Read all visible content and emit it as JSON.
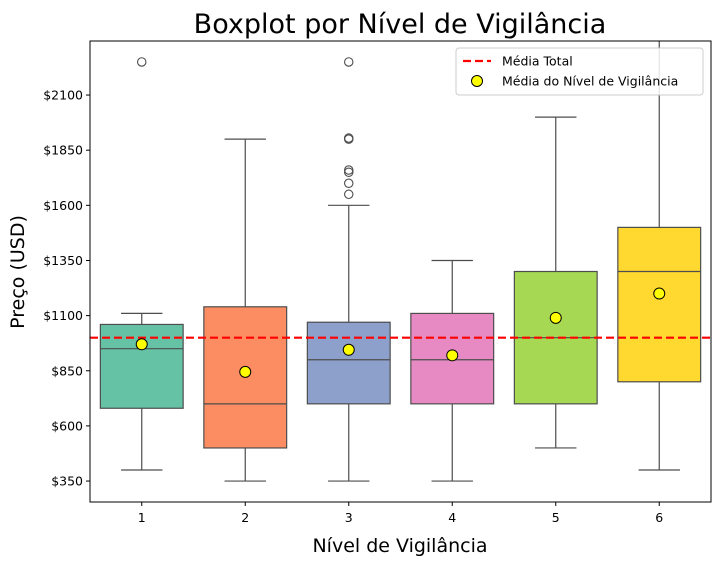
{
  "chart_data": {
    "type": "boxplot",
    "title": "Boxplot por Nível de Vigilância",
    "xlabel": "Nível de Vigilância",
    "ylabel": "Preço (USD)",
    "categories": [
      "1",
      "2",
      "3",
      "4",
      "5",
      "6"
    ],
    "ylim": [
      255,
      2345
    ],
    "yticks": [
      350,
      600,
      850,
      1100,
      1350,
      1600,
      1850,
      2100
    ],
    "ytick_labels": [
      "$350",
      "$600",
      "$850",
      "$1100",
      "$1350",
      "$1600",
      "$1850",
      "$2100"
    ],
    "boxes": [
      {
        "category": "1",
        "whisker_low": 400,
        "q1": 680,
        "median": 950,
        "q3": 1060,
        "whisker_high": 1110,
        "outliers": [
          2250
        ],
        "mean": 970,
        "color": "#66c2a5"
      },
      {
        "category": "2",
        "whisker_low": 350,
        "q1": 500,
        "median": 700,
        "q3": 1140,
        "whisker_high": 1900,
        "outliers": [],
        "mean": 845,
        "color": "#fc8d62"
      },
      {
        "category": "3",
        "whisker_low": 350,
        "q1": 700,
        "median": 900,
        "q3": 1070,
        "whisker_high": 1600,
        "outliers": [
          1650,
          1700,
          1750,
          1760,
          1900,
          1905,
          2250
        ],
        "mean": 945,
        "color": "#8da0cb"
      },
      {
        "category": "4",
        "whisker_low": 350,
        "q1": 700,
        "median": 900,
        "q3": 1110,
        "whisker_high": 1350,
        "outliers": [],
        "mean": 920,
        "color": "#e78ac3"
      },
      {
        "category": "5",
        "whisker_low": 500,
        "q1": 700,
        "median": 1000,
        "q3": 1300,
        "whisker_high": 2000,
        "outliers": [],
        "mean": 1090,
        "color": "#a6d854"
      },
      {
        "category": "6",
        "whisker_low": 400,
        "q1": 800,
        "median": 1300,
        "q3": 1500,
        "whisker_high": 2350,
        "outliers": [],
        "mean": 1200,
        "color": "#ffd92f"
      }
    ],
    "overall_mean": 1000,
    "overall_mean_color": "#ff0000",
    "mean_marker_color": "#ffff00",
    "legend": {
      "position": "top-right",
      "items": [
        {
          "label": "Média Total",
          "kind": "dashed-line"
        },
        {
          "label": "Média do Nível de Vigilância",
          "kind": "marker"
        }
      ]
    },
    "grid": false
  }
}
